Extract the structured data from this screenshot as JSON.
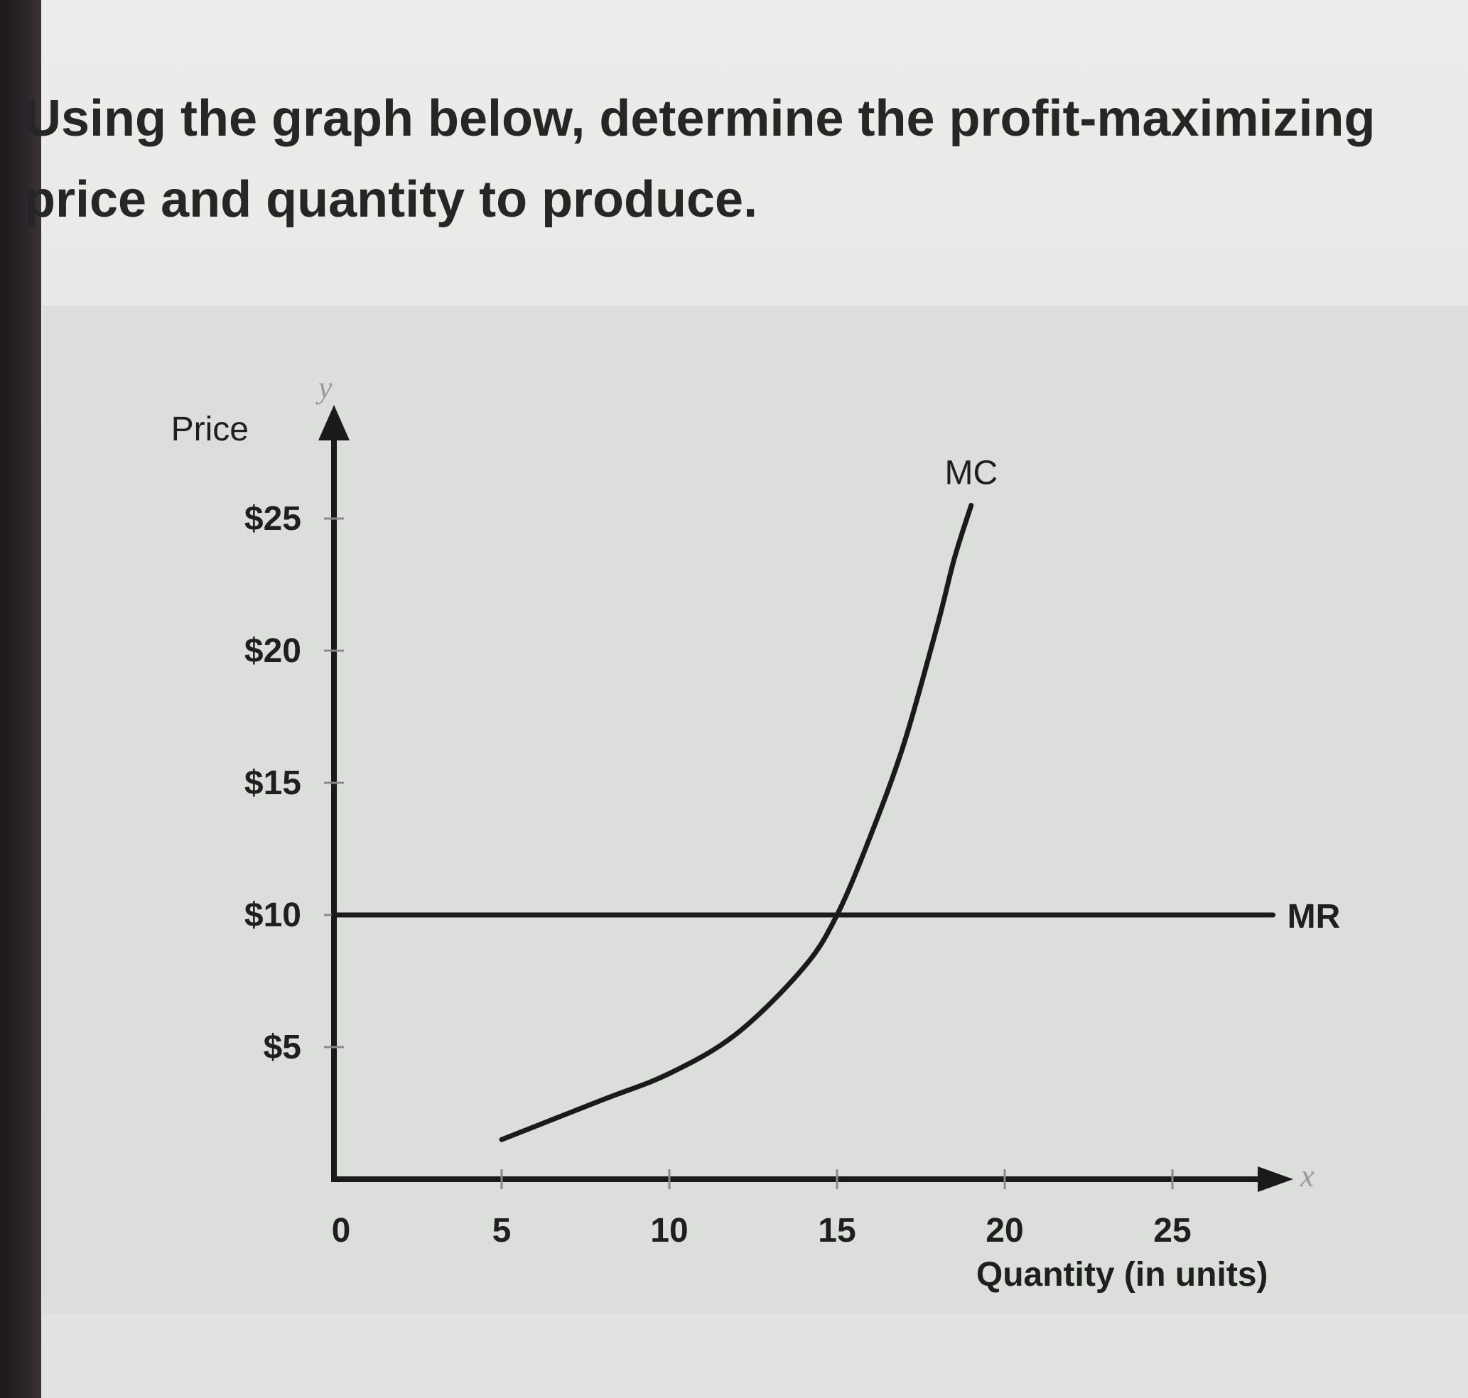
{
  "question": "Using the graph below, determine the profit-maximizing price and quantity to produce.",
  "chart_data": {
    "type": "line",
    "ylabel": "Price",
    "xlabel": "Quantity (in units)",
    "y_axis_letter": "y",
    "x_axis_letter": "x",
    "x_tick_labels": [
      "0",
      "5",
      "10",
      "15",
      "20",
      "25"
    ],
    "x_ticks": [
      0,
      5,
      10,
      15,
      20,
      25
    ],
    "y_tick_labels": [
      "$5",
      "$10",
      "$15",
      "$20",
      "$25"
    ],
    "y_ticks": [
      5,
      10,
      15,
      20,
      25
    ],
    "xlim": [
      0,
      28
    ],
    "ylim": [
      0,
      28
    ],
    "grid": false,
    "series": [
      {
        "name": "MC",
        "x": [
          5,
          8,
          10,
          12,
          14,
          15,
          16,
          17,
          18,
          18.5,
          19
        ],
        "y": [
          1.5,
          3,
          4,
          5.5,
          8,
          10,
          13,
          16.5,
          21,
          23.5,
          25.5
        ]
      },
      {
        "name": "MR",
        "x": [
          0,
          28
        ],
        "y": [
          10,
          10
        ]
      }
    ]
  }
}
